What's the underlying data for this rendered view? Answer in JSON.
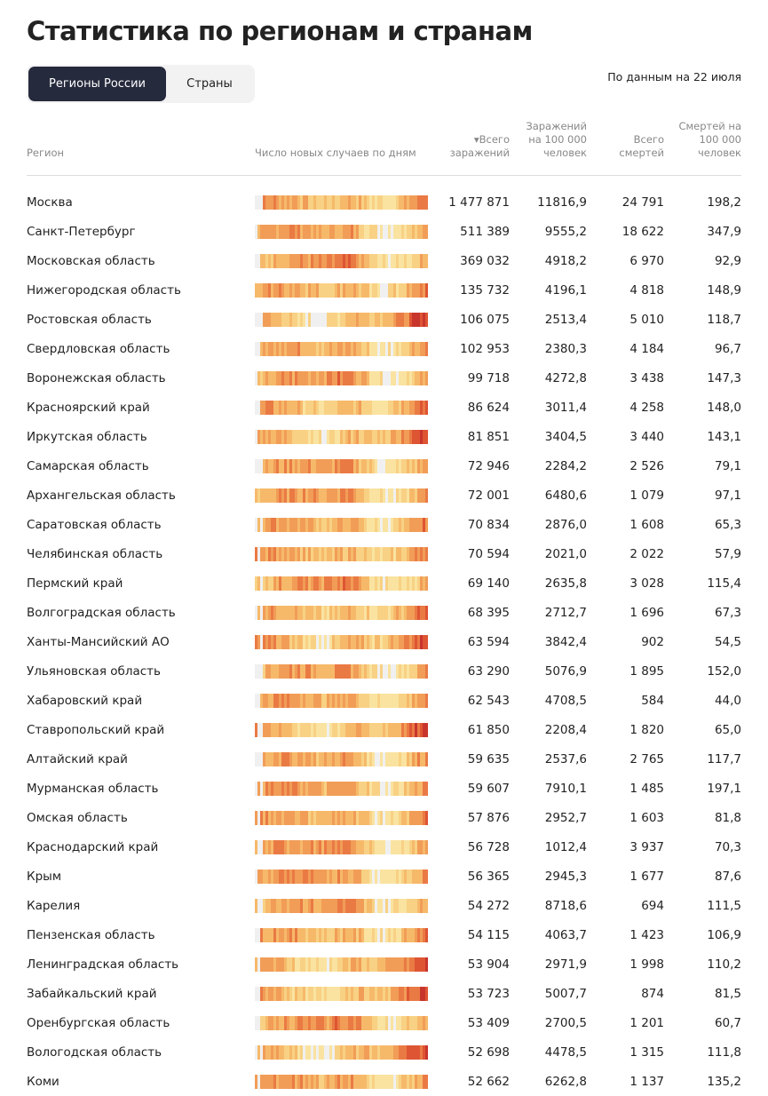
{
  "header": {
    "title": "Статистика по регионам и странам",
    "tabs": [
      "Регионы России",
      "Страны"
    ],
    "date_note": "По данным на 22 июля"
  },
  "table": {
    "columns": [
      "Регион",
      "Число новых случаев по дням",
      "▾Всего заражений",
      "Заражений на 100 000 человек",
      "Всего смертей",
      "Смертей на 100 000 человек"
    ],
    "rows": [
      [
        "Москва",
        "1 477 871",
        "11816,9",
        "24 791",
        "198,2"
      ],
      [
        "Санкт-Петербург",
        "511 389",
        "9555,2",
        "18 622",
        "347,9"
      ],
      [
        "Московская область",
        "369 032",
        "4918,2",
        "6 970",
        "92,9"
      ],
      [
        "Нижегородская область",
        "135 732",
        "4196,1",
        "4 818",
        "148,9"
      ],
      [
        "Ростовская область",
        "106 075",
        "2513,4",
        "5 010",
        "118,7"
      ],
      [
        "Свердловская область",
        "102 953",
        "2380,3",
        "4 184",
        "96,7"
      ],
      [
        "Воронежская область",
        "99 718",
        "4272,8",
        "3 438",
        "147,3"
      ],
      [
        "Красноярский край",
        "86 624",
        "3011,4",
        "4 258",
        "148,0"
      ],
      [
        "Иркутская область",
        "81 851",
        "3404,5",
        "3 440",
        "143,1"
      ],
      [
        "Самарская область",
        "72 946",
        "2284,2",
        "2 526",
        "79,1"
      ],
      [
        "Архангельская область",
        "72 001",
        "6480,6",
        "1 079",
        "97,1"
      ],
      [
        "Саратовская область",
        "70 834",
        "2876,0",
        "1 608",
        "65,3"
      ],
      [
        "Челябинская область",
        "70 594",
        "2021,0",
        "2 022",
        "57,9"
      ],
      [
        "Пермский край",
        "69 140",
        "2635,8",
        "3 028",
        "115,4"
      ],
      [
        "Волгоградская область",
        "68 395",
        "2712,7",
        "1 696",
        "67,3"
      ],
      [
        "Ханты-Мансийский АО",
        "63 594",
        "3842,4",
        "902",
        "54,5"
      ],
      [
        "Ульяновская область",
        "63 290",
        "5076,9",
        "1 895",
        "152,0"
      ],
      [
        "Хабаровский край",
        "62 543",
        "4708,5",
        "584",
        "44,0"
      ],
      [
        "Ставропольский край",
        "61 850",
        "2208,4",
        "1 820",
        "65,0"
      ],
      [
        "Алтайский край",
        "59 635",
        "2537,6",
        "2 765",
        "117,7"
      ],
      [
        "Мурманская область",
        "59 607",
        "7910,1",
        "1 485",
        "197,1"
      ],
      [
        "Омская область",
        "57 876",
        "2952,7",
        "1 603",
        "81,8"
      ],
      [
        "Краснодарский край",
        "56 728",
        "1012,4",
        "3 937",
        "70,3"
      ],
      [
        "Крым",
        "56 365",
        "2945,3",
        "1 677",
        "87,6"
      ],
      [
        "Карелия",
        "54 272",
        "8718,6",
        "694",
        "111,5"
      ],
      [
        "Пензенская область",
        "54 115",
        "4063,7",
        "1 423",
        "106,9"
      ],
      [
        "Ленинградская область",
        "53 904",
        "2971,9",
        "1 998",
        "110,2"
      ],
      [
        "Забайкальский край",
        "53 723",
        "5007,7",
        "874",
        "81,5"
      ],
      [
        "Оренбургская область",
        "53 409",
        "2700,5",
        "1 201",
        "60,7"
      ],
      [
        "Вологодская область",
        "52 698",
        "4478,5",
        "1 315",
        "111,8"
      ],
      [
        "Коми",
        "52 662",
        "6262,8",
        "1 137",
        "135,2"
      ]
    ]
  }
}
